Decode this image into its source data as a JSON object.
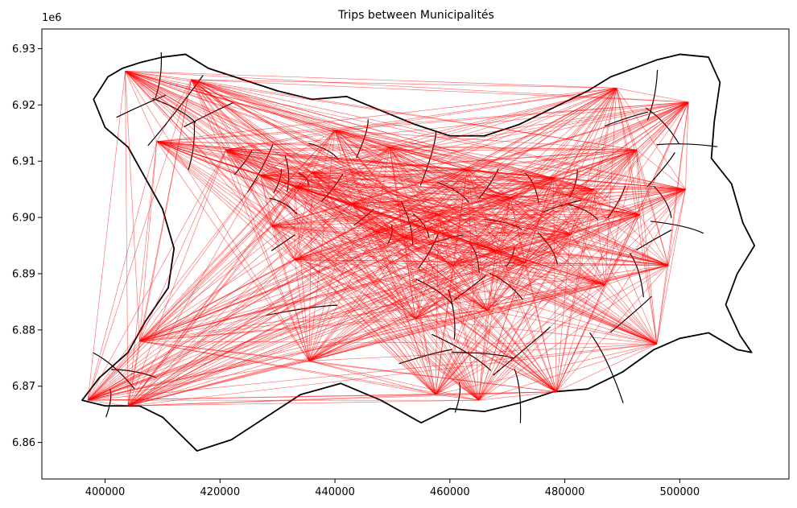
{
  "chart_data": {
    "type": "map",
    "title": "Trips between Municipalités",
    "xlabel": "",
    "ylabel": "",
    "y_offset_label": "1e6",
    "xlim": [
      389000,
      519000
    ],
    "ylim": [
      6.8535,
      6.9335
    ],
    "x_ticks": [
      400000,
      420000,
      440000,
      460000,
      480000,
      500000
    ],
    "x_tick_labels": [
      "400000",
      "420000",
      "440000",
      "460000",
      "480000",
      "500000"
    ],
    "y_ticks": [
      6.86,
      6.87,
      6.88,
      6.89,
      6.9,
      6.91,
      6.92,
      6.93
    ],
    "y_tick_labels": [
      "6.86",
      "6.87",
      "6.88",
      "6.89",
      "6.90",
      "6.91",
      "6.92",
      "6.93"
    ],
    "grid": false,
    "colors": {
      "boundary": "#000000",
      "trips": "#ff0000"
    },
    "boundary_outline": [
      [
        403000,
        6.9265
      ],
      [
        406000,
        6.9275
      ],
      [
        410000,
        6.9285
      ],
      [
        414000,
        6.929
      ],
      [
        418000,
        6.9265
      ],
      [
        424000,
        6.9245
      ],
      [
        430000,
        6.9225
      ],
      [
        436000,
        6.921
      ],
      [
        442000,
        6.9215
      ],
      [
        448000,
        6.919
      ],
      [
        454000,
        6.9165
      ],
      [
        460000,
        6.9145
      ],
      [
        466000,
        6.9145
      ],
      [
        472000,
        6.9165
      ],
      [
        478000,
        6.9195
      ],
      [
        484000,
        6.9225
      ],
      [
        488000,
        6.925
      ],
      [
        492000,
        6.9265
      ],
      [
        496000,
        6.928
      ],
      [
        500000,
        6.929
      ],
      [
        505000,
        6.9285
      ],
      [
        507000,
        6.924
      ],
      [
        506000,
        6.917
      ],
      [
        505500,
        6.9105
      ],
      [
        509000,
        6.906
      ],
      [
        511000,
        6.899
      ],
      [
        513000,
        6.895
      ],
      [
        510000,
        6.89
      ],
      [
        508000,
        6.8845
      ],
      [
        510500,
        6.879
      ],
      [
        512500,
        6.876
      ],
      [
        510000,
        6.8765
      ],
      [
        505000,
        6.8795
      ],
      [
        500000,
        6.8785
      ],
      [
        495500,
        6.8765
      ],
      [
        490000,
        6.8725
      ],
      [
        484000,
        6.8695
      ],
      [
        478000,
        6.869
      ],
      [
        472000,
        6.867
      ],
      [
        466000,
        6.8655
      ],
      [
        460000,
        6.866
      ],
      [
        455000,
        6.8635
      ],
      [
        448000,
        6.8675
      ],
      [
        441000,
        6.8705
      ],
      [
        434000,
        6.8685
      ],
      [
        428000,
        6.8645
      ],
      [
        422000,
        6.8605
      ],
      [
        416000,
        6.8585
      ],
      [
        410000,
        6.8645
      ],
      [
        406000,
        6.8665
      ],
      [
        400000,
        6.8665
      ],
      [
        396000,
        6.8675
      ],
      [
        399000,
        6.8715
      ],
      [
        404000,
        6.876
      ],
      [
        407000,
        6.8815
      ],
      [
        411000,
        6.8875
      ],
      [
        412000,
        6.8945
      ],
      [
        410000,
        6.9015
      ],
      [
        407000,
        6.907
      ],
      [
        404000,
        6.9125
      ],
      [
        400000,
        6.916
      ],
      [
        398000,
        6.921
      ],
      [
        400500,
        6.925
      ],
      [
        403000,
        6.9265
      ]
    ],
    "municipality_centroids": [
      [
        403500,
        6.926
      ],
      [
        409000,
        6.9135
      ],
      [
        415000,
        6.9245
      ],
      [
        421000,
        6.912
      ],
      [
        427000,
        6.9075
      ],
      [
        433000,
        6.9055
      ],
      [
        436000,
        6.908
      ],
      [
        443000,
        6.9025
      ],
      [
        447000,
        6.8975
      ],
      [
        452000,
        6.8965
      ],
      [
        458000,
        6.9005
      ],
      [
        463000,
        6.9085
      ],
      [
        468000,
        6.894
      ],
      [
        473000,
        6.892
      ],
      [
        478000,
        6.907
      ],
      [
        481000,
        6.897
      ],
      [
        485000,
        6.905
      ],
      [
        489000,
        6.923
      ],
      [
        493000,
        6.9005
      ],
      [
        498000,
        6.8915
      ],
      [
        501500,
        6.9205
      ],
      [
        501000,
        6.905
      ],
      [
        496000,
        6.8775
      ],
      [
        478500,
        6.869
      ],
      [
        465000,
        6.8675
      ],
      [
        457500,
        6.8685
      ],
      [
        454000,
        6.882
      ],
      [
        435500,
        6.8745
      ],
      [
        433000,
        6.8925
      ],
      [
        406000,
        6.878
      ],
      [
        404000,
        6.8665
      ],
      [
        397000,
        6.8675
      ],
      [
        466500,
        6.8835
      ],
      [
        487000,
        6.888
      ],
      [
        470500,
        6.9035
      ],
      [
        449500,
        6.9125
      ],
      [
        440000,
        6.9155
      ],
      [
        429000,
        6.8985
      ],
      [
        460500,
        6.8915
      ],
      [
        492500,
        6.912
      ]
    ]
  }
}
